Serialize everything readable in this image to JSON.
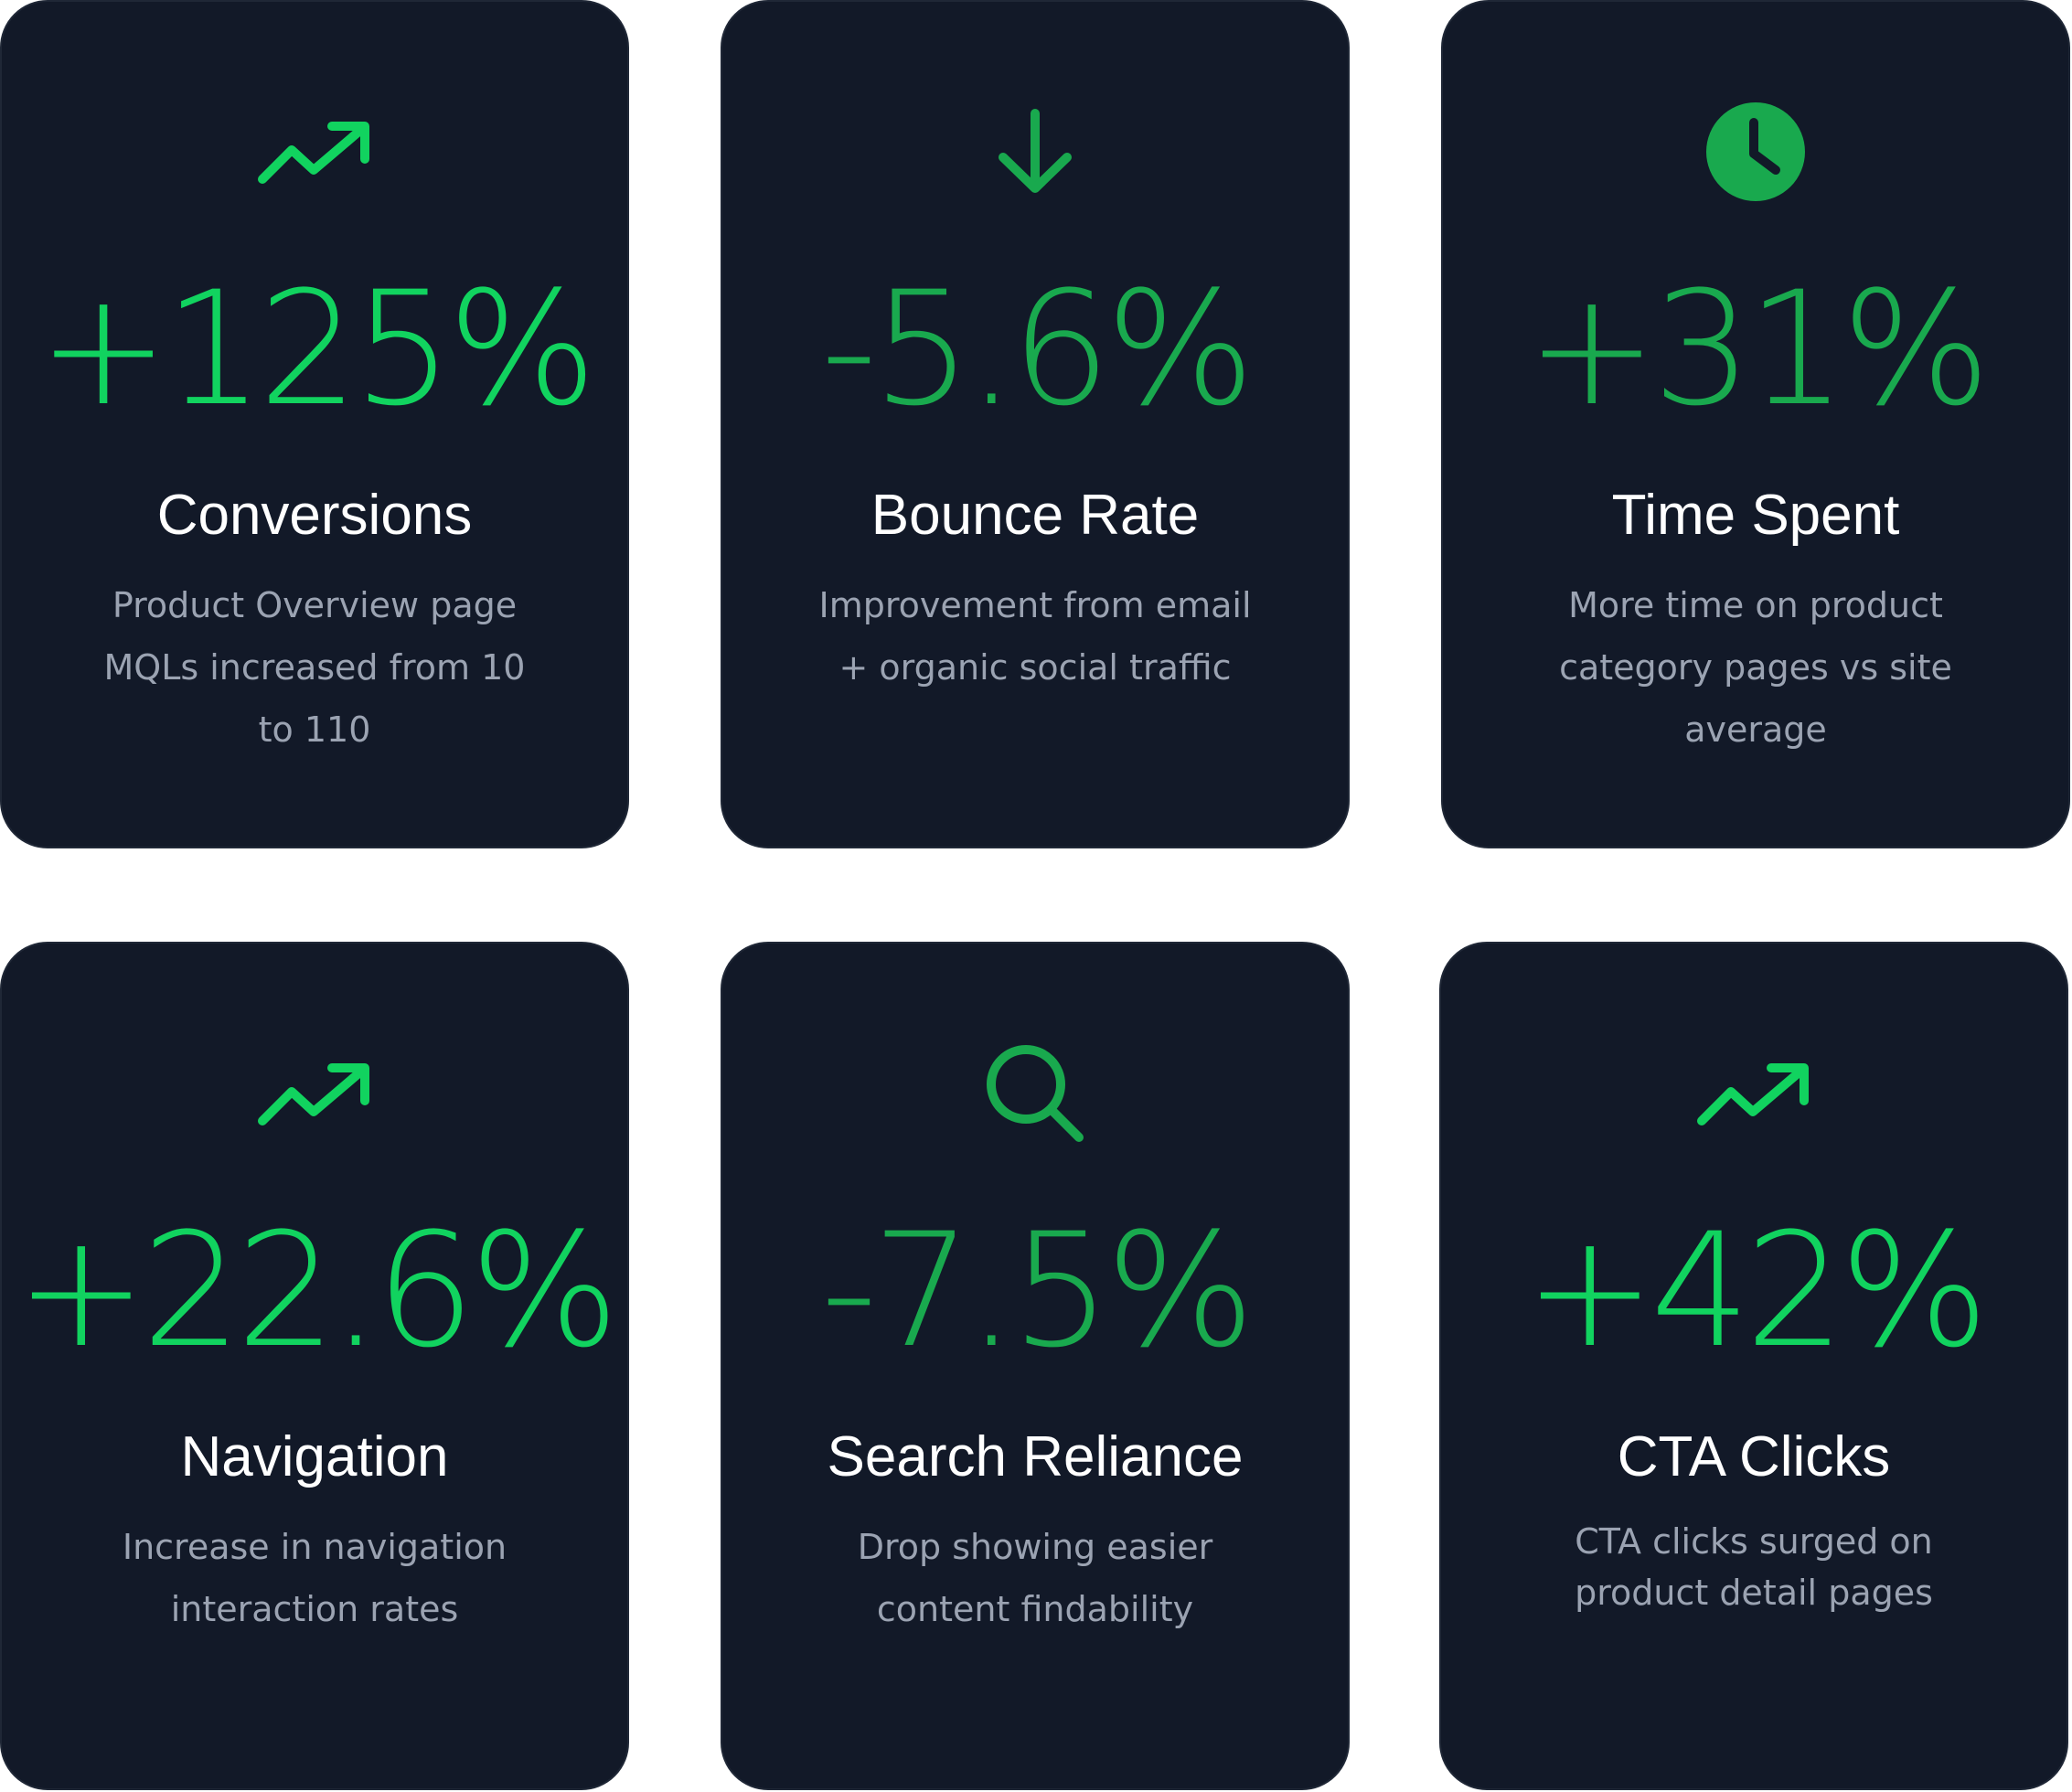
{
  "theme": {
    "card_background": "#121928",
    "accent_bright": "#11d35f",
    "accent_mid": "#19a94e",
    "label_color": "#ffffff",
    "description_color": "#9ba3b2"
  },
  "cards": [
    {
      "icon": "trending-up-icon",
      "value": "+125%",
      "label": "Conversions",
      "description": "Product Overview page MQLs increased from 10 to 110"
    },
    {
      "icon": "arrow-down-icon",
      "value": "-5.6%",
      "label": "Bounce Rate",
      "description": "Improvement from email + organic social traffic"
    },
    {
      "icon": "clock-icon",
      "value": "+31%",
      "label": "Time Spent",
      "description": "More time on product category pages vs site average"
    },
    {
      "icon": "trending-up-icon",
      "value": "+22.6%",
      "label": "Navigation",
      "description": "Increase in navigation interaction rates"
    },
    {
      "icon": "search-icon",
      "value": "-7.5%",
      "label": "Search Reliance",
      "description": "Drop showing easier content findability"
    },
    {
      "icon": "trending-up-icon",
      "value": "+42%",
      "label": "CTA Clicks",
      "description": "CTA clicks surged on product detail pages"
    }
  ]
}
